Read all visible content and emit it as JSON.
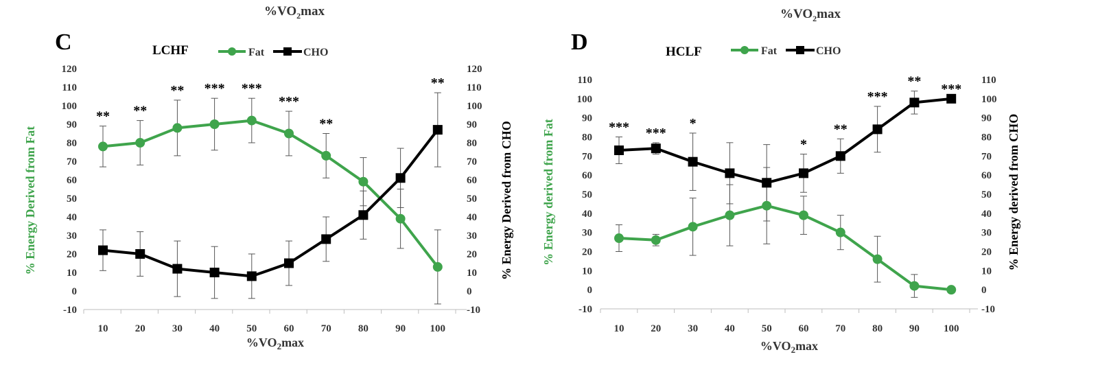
{
  "header": {
    "left": "%VO",
    "right": "%VO",
    "sub": "2",
    "tail": "max"
  },
  "chart_data": [
    {
      "type": "line",
      "panel_letter": "C",
      "title": "LCHF",
      "x": [
        10,
        20,
        30,
        40,
        50,
        60,
        70,
        80,
        90,
        100
      ],
      "xlabel": "%VO2max",
      "ylabel_left": "% Energy Derived from Fat",
      "ylabel_right": "% Energy Derived from CHO",
      "ylim": [
        -10,
        120
      ],
      "yticks": [
        -10,
        0,
        10,
        20,
        30,
        40,
        50,
        60,
        70,
        80,
        90,
        100,
        110,
        120
      ],
      "legend": "top-center",
      "grid": false,
      "series": [
        {
          "name": "Fat",
          "color": "#3fa44c",
          "marker": "circle",
          "values": [
            78,
            80,
            88,
            90,
            92,
            85,
            73,
            59,
            39,
            13
          ],
          "error": [
            11,
            12,
            15,
            14,
            12,
            12,
            12,
            13,
            16,
            20
          ]
        },
        {
          "name": "CHO",
          "color": "#000000",
          "marker": "square",
          "values": [
            22,
            20,
            12,
            10,
            8,
            15,
            28,
            41,
            61,
            87
          ],
          "error": [
            11,
            12,
            15,
            14,
            12,
            12,
            12,
            13,
            16,
            20
          ]
        }
      ],
      "significance": [
        "**",
        "**",
        "**",
        "***",
        "***",
        "***",
        "**",
        "",
        "",
        "**"
      ]
    },
    {
      "type": "line",
      "panel_letter": "D",
      "title": "HCLF",
      "x": [
        10,
        20,
        30,
        40,
        50,
        60,
        70,
        80,
        90,
        100
      ],
      "xlabel": "%VO2max",
      "ylabel_left": "% Energy derived from Fat",
      "ylabel_right": "% Energy derived from CHO",
      "ylim": [
        -10,
        110
      ],
      "yticks": [
        -10,
        0,
        10,
        20,
        30,
        40,
        50,
        60,
        70,
        80,
        90,
        100,
        110
      ],
      "legend": "top-center",
      "grid": false,
      "series": [
        {
          "name": "Fat",
          "color": "#3fa44c",
          "marker": "circle",
          "values": [
            27,
            26,
            33,
            39,
            44,
            39,
            30,
            16,
            2,
            0
          ],
          "error": [
            7,
            3,
            15,
            16,
            20,
            10,
            9,
            12,
            6,
            0
          ]
        },
        {
          "name": "CHO",
          "color": "#000000",
          "marker": "square",
          "values": [
            73,
            74,
            67,
            61,
            56,
            61,
            70,
            84,
            98,
            100
          ],
          "error": [
            7,
            3,
            15,
            16,
            20,
            10,
            9,
            12,
            6,
            0
          ]
        }
      ],
      "significance": [
        "***",
        "***",
        "*",
        "",
        "",
        "*",
        "**",
        "***",
        "**",
        "***"
      ]
    }
  ]
}
